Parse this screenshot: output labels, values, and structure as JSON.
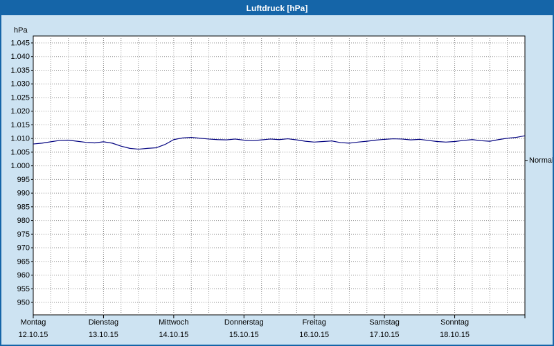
{
  "window": {
    "title": "Luftdruck [hPa]"
  },
  "colors": {
    "titlebar": "#1565a8",
    "background": "#cde3f2",
    "plot_background": "#ffffff",
    "plot_border": "#000000",
    "grid": "#8c8c8c",
    "series_line": "#00007f",
    "title_text": "#ffffff",
    "axis_text": "#000000"
  },
  "chart_data": {
    "type": "line",
    "title": "Luftdruck [hPa]",
    "ylabel": "hPa",
    "xlabel": "",
    "grid": true,
    "legend_position": "none",
    "y_axis": {
      "top_value": 1045,
      "bottom_value": 950,
      "step": 5,
      "tick_labels": [
        "1.045",
        "1.040",
        "1.035",
        "1.030",
        "1.025",
        "1.020",
        "1.015",
        "1.010",
        "1.005",
        "1.000",
        "995",
        "990",
        "985",
        "980",
        "975",
        "970",
        "965",
        "960",
        "955",
        "950"
      ]
    },
    "x_axis": {
      "minor_gridline_hours": 6,
      "total_hours": 168,
      "days": [
        {
          "name": "Montag",
          "date": "12.10.15"
        },
        {
          "name": "Dienstag",
          "date": "13.10.15"
        },
        {
          "name": "Mittwoch",
          "date": "14.10.15"
        },
        {
          "name": "Donnerstag",
          "date": "15.10.15"
        },
        {
          "name": "Freitag",
          "date": "16.10.15"
        },
        {
          "name": "Samstag",
          "date": "17.10.15"
        },
        {
          "name": "Sonntag",
          "date": "18.10.15"
        }
      ]
    },
    "normal_marker": {
      "label": "Normal",
      "value": 1002
    },
    "series": [
      {
        "name": "Luftdruck",
        "unit": "hPa",
        "sample_interval_hours": 3,
        "values": [
          1008.0,
          1008.3,
          1008.8,
          1009.3,
          1009.4,
          1009.0,
          1008.6,
          1008.4,
          1008.8,
          1008.3,
          1007.2,
          1006.4,
          1006.1,
          1006.4,
          1006.6,
          1007.8,
          1009.6,
          1010.2,
          1010.4,
          1010.1,
          1009.8,
          1009.6,
          1009.5,
          1009.8,
          1009.4,
          1009.2,
          1009.5,
          1009.8,
          1009.6,
          1009.9,
          1009.5,
          1009.0,
          1008.7,
          1008.9,
          1009.1,
          1008.5,
          1008.3,
          1008.7,
          1009.0,
          1009.4,
          1009.7,
          1009.9,
          1009.8,
          1009.5,
          1009.7,
          1009.3,
          1008.9,
          1008.7,
          1008.9,
          1009.3,
          1009.6,
          1009.2,
          1009.0,
          1009.6,
          1010.1,
          1010.4,
          1011.0
        ]
      }
    ]
  }
}
